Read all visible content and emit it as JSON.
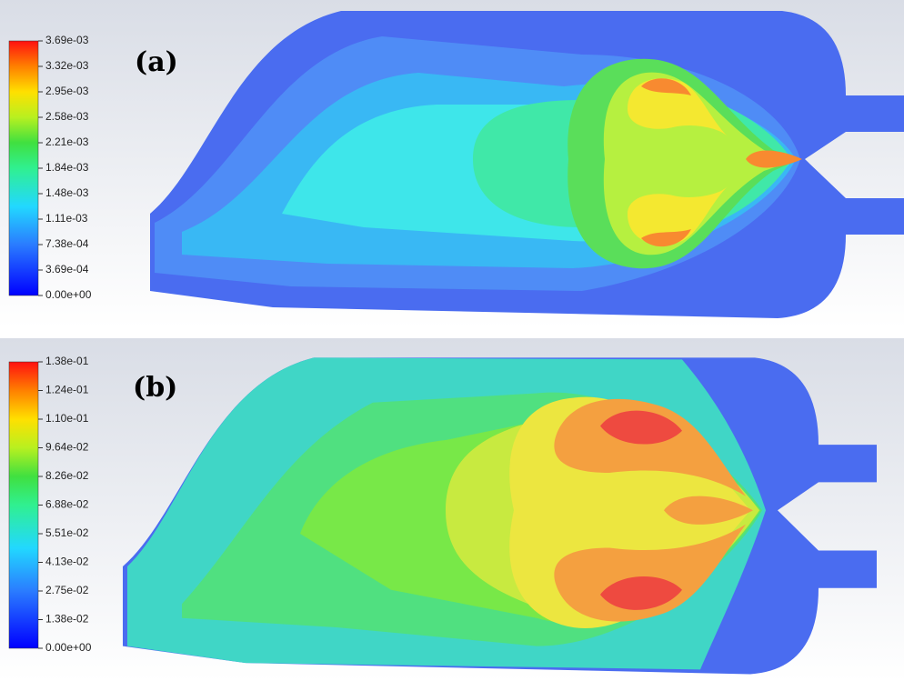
{
  "panels": [
    {
      "label": "(a)",
      "colorbar": {
        "ticks": [
          "3.69e-03",
          "3.32e-03",
          "2.95e-03",
          "2.58e-03",
          "2.21e-03",
          "1.84e-03",
          "1.48e-03",
          "1.11e-03",
          "7.38e-04",
          "3.69e-04",
          "0.00e+00"
        ]
      }
    },
    {
      "label": "(b)",
      "colorbar": {
        "ticks": [
          "1.38e-01",
          "1.24e-01",
          "1.10e-01",
          "9.64e-02",
          "8.26e-02",
          "6.88e-02",
          "5.51e-02",
          "4.13e-02",
          "2.75e-02",
          "1.38e-02",
          "0.00e+00"
        ]
      }
    }
  ]
}
